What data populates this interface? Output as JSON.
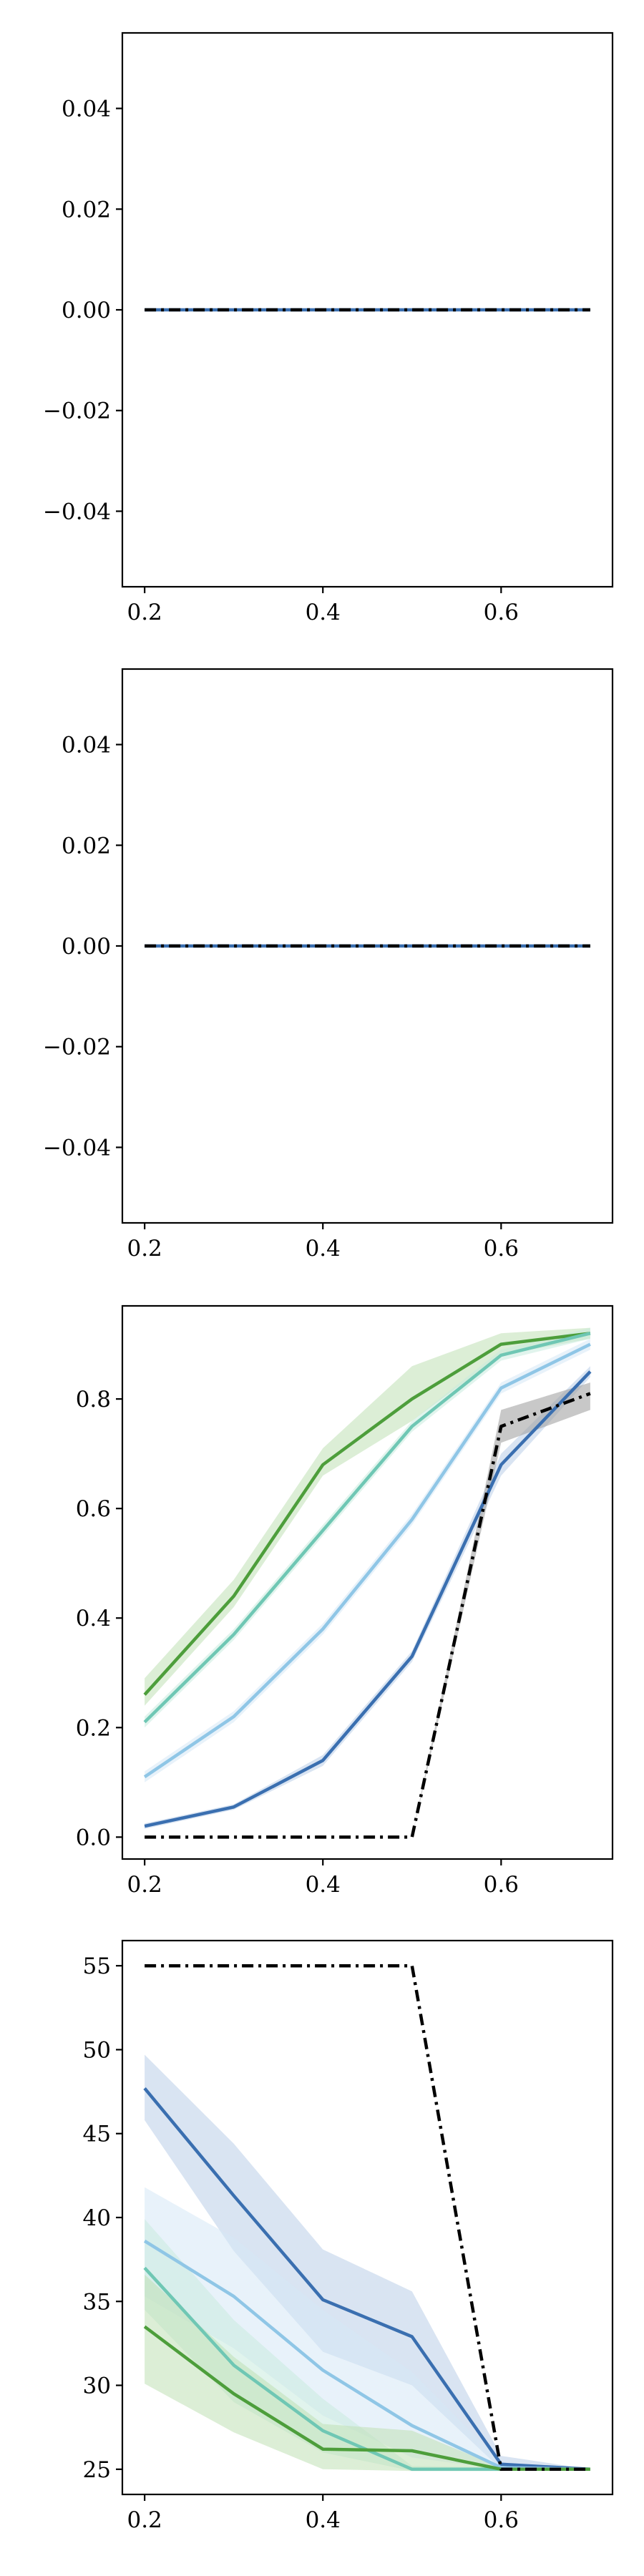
{
  "colors": {
    "dark_blue": "#3a6fb0",
    "light_blue": "#8fc6e6",
    "teal": "#6fc7b4",
    "green": "#4d9e3b",
    "black": "#000000",
    "band_dark_blue": "#b9cde8",
    "band_light_blue": "#d6e8f6",
    "band_teal": "#c9ebdf",
    "band_green": "#bfe0b5",
    "band_black": "#9a9a9a"
  },
  "chart_data": [
    {
      "type": "line",
      "xlim": [
        0.175,
        0.725
      ],
      "ylim": [
        -0.055,
        0.055
      ],
      "x_ticks": [
        "0.2",
        "0.4",
        "0.6"
      ],
      "x_tick_values": [
        0.2,
        0.4,
        0.6
      ],
      "y_ticks": [
        "−0.04",
        "−0.02",
        "0.00",
        "0.02",
        "0.04"
      ],
      "y_tick_values": [
        -0.04,
        -0.02,
        0.0,
        0.02,
        0.04
      ],
      "x": [
        0.2,
        0.3,
        0.4,
        0.5,
        0.6,
        0.7
      ],
      "series": [
        {
          "color": "dark_blue",
          "style": "solid",
          "values": [
            0,
            0,
            0,
            0,
            0,
            0
          ]
        },
        {
          "color": "black",
          "style": "dashdot",
          "values": [
            0,
            0,
            0,
            0,
            0,
            0
          ]
        }
      ],
      "grid": false
    },
    {
      "type": "line",
      "xlim": [
        0.175,
        0.725
      ],
      "ylim": [
        -0.055,
        0.055
      ],
      "x_ticks": [
        "0.2",
        "0.4",
        "0.6"
      ],
      "x_tick_values": [
        0.2,
        0.4,
        0.6
      ],
      "y_ticks": [
        "−0.04",
        "−0.02",
        "0.00",
        "0.02",
        "0.04"
      ],
      "y_tick_values": [
        -0.04,
        -0.02,
        0.0,
        0.02,
        0.04
      ],
      "x": [
        0.2,
        0.3,
        0.4,
        0.5,
        0.6,
        0.7
      ],
      "series": [
        {
          "color": "dark_blue",
          "style": "solid",
          "values": [
            0,
            0,
            0,
            0,
            0,
            0
          ]
        },
        {
          "color": "black",
          "style": "dashdot",
          "values": [
            0,
            0,
            0,
            0,
            0,
            0
          ]
        }
      ],
      "grid": false
    },
    {
      "type": "line",
      "xlim": [
        0.175,
        0.725
      ],
      "ylim": [
        -0.04,
        0.97
      ],
      "x_ticks": [
        "0.2",
        "0.4",
        "0.6"
      ],
      "x_tick_values": [
        0.2,
        0.4,
        0.6
      ],
      "y_ticks": [
        "0.0",
        "0.2",
        "0.4",
        "0.6",
        "0.8"
      ],
      "y_tick_values": [
        0.0,
        0.2,
        0.4,
        0.6,
        0.8
      ],
      "x": [
        0.2,
        0.3,
        0.4,
        0.5,
        0.6,
        0.7
      ],
      "series": [
        {
          "color": "green",
          "band": "band_green",
          "style": "solid",
          "values": [
            0.26,
            0.44,
            0.68,
            0.8,
            0.9,
            0.92
          ],
          "lower": [
            0.24,
            0.42,
            0.66,
            0.76,
            0.88,
            0.91
          ],
          "upper": [
            0.29,
            0.47,
            0.71,
            0.86,
            0.92,
            0.93
          ]
        },
        {
          "color": "teal",
          "band": "band_teal",
          "style": "solid",
          "values": [
            0.21,
            0.37,
            0.56,
            0.75,
            0.88,
            0.92
          ],
          "lower": [
            0.2,
            0.36,
            0.55,
            0.74,
            0.87,
            0.91
          ],
          "upper": [
            0.22,
            0.38,
            0.57,
            0.76,
            0.89,
            0.93
          ]
        },
        {
          "color": "light_blue",
          "band": "band_light_blue",
          "style": "solid",
          "values": [
            0.11,
            0.22,
            0.38,
            0.58,
            0.82,
            0.9
          ],
          "lower": [
            0.1,
            0.21,
            0.37,
            0.57,
            0.81,
            0.89
          ],
          "upper": [
            0.12,
            0.23,
            0.39,
            0.59,
            0.83,
            0.91
          ]
        },
        {
          "color": "dark_blue",
          "band": "band_dark_blue",
          "style": "solid",
          "values": [
            0.02,
            0.055,
            0.14,
            0.33,
            0.68,
            0.85
          ],
          "lower": [
            0.015,
            0.05,
            0.13,
            0.32,
            0.66,
            0.84
          ],
          "upper": [
            0.025,
            0.06,
            0.15,
            0.34,
            0.7,
            0.86
          ]
        },
        {
          "color": "black",
          "band": "band_black",
          "style": "dashdot",
          "values": [
            0,
            0,
            0,
            0,
            0.75,
            0.81
          ],
          "lower": [
            0,
            0,
            0,
            0,
            0.72,
            0.78
          ],
          "upper": [
            0,
            0,
            0,
            0,
            0.78,
            0.83
          ]
        }
      ],
      "grid": false
    },
    {
      "type": "line",
      "xlim": [
        0.175,
        0.725
      ],
      "ylim": [
        23.5,
        56.5
      ],
      "x_ticks": [
        "0.2",
        "0.4",
        "0.6"
      ],
      "x_tick_values": [
        0.2,
        0.4,
        0.6
      ],
      "y_ticks": [
        "25",
        "30",
        "35",
        "40",
        "45",
        "50",
        "55"
      ],
      "y_tick_values": [
        25,
        30,
        35,
        40,
        45,
        50,
        55
      ],
      "x": [
        0.2,
        0.3,
        0.4,
        0.5,
        0.6,
        0.7
      ],
      "series": [
        {
          "color": "dark_blue",
          "band": "band_dark_blue",
          "style": "solid",
          "values": [
            47.7,
            41.3,
            35.1,
            32.9,
            25.3,
            25
          ],
          "lower": [
            45.8,
            38.0,
            32.0,
            30.0,
            25.0,
            25
          ],
          "upper": [
            49.7,
            44.4,
            38.1,
            35.6,
            25.8,
            25
          ]
        },
        {
          "color": "light_blue",
          "band": "band_light_blue",
          "style": "solid",
          "values": [
            38.6,
            35.3,
            30.9,
            27.6,
            25.1,
            25
          ],
          "lower": [
            35.3,
            32.2,
            28.2,
            25.7,
            25.0,
            25
          ],
          "upper": [
            41.8,
            38.8,
            34.5,
            30.8,
            25.4,
            25
          ]
        },
        {
          "color": "teal",
          "band": "band_teal",
          "style": "solid",
          "values": [
            37.0,
            31.2,
            27.3,
            25.0,
            25.0,
            25
          ],
          "lower": [
            34.5,
            29.0,
            26.0,
            24.9,
            24.9,
            25
          ],
          "upper": [
            39.9,
            33.9,
            29.2,
            25.2,
            25.1,
            25
          ]
        },
        {
          "color": "green",
          "band": "band_green",
          "style": "solid",
          "values": [
            33.5,
            29.5,
            26.2,
            26.1,
            25.0,
            25
          ],
          "lower": [
            30.1,
            27.2,
            25.0,
            24.9,
            24.9,
            25
          ],
          "upper": [
            36.6,
            31.7,
            27.7,
            27.3,
            25.1,
            25
          ]
        },
        {
          "color": "black",
          "style": "dashdot",
          "values": [
            55,
            55,
            55,
            55,
            25,
            25
          ]
        }
      ],
      "grid": false
    }
  ]
}
